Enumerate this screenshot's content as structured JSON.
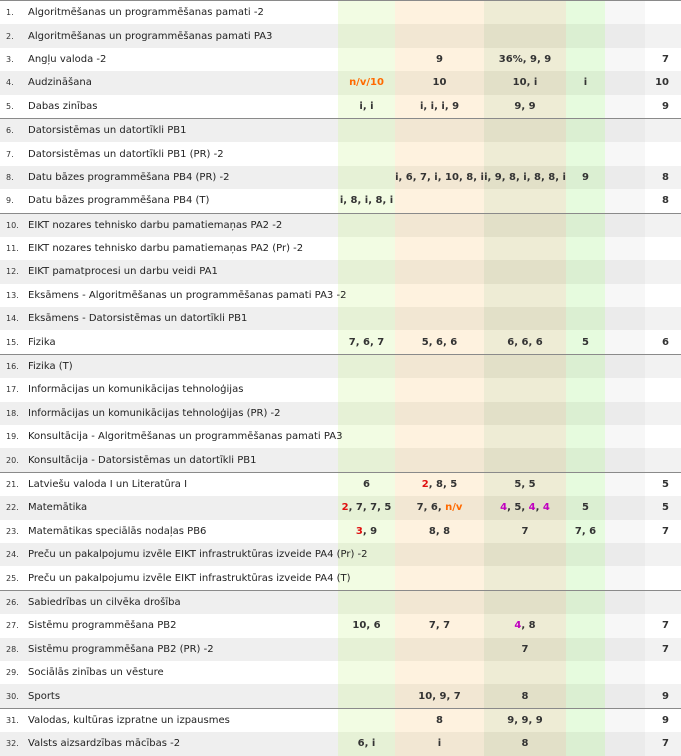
{
  "rows": [
    {
      "num": "1.",
      "subject": "Algoritmēšanas un programmēšanas pamati -2",
      "cols": [
        [],
        [],
        [],
        [],
        [],
        []
      ]
    },
    {
      "num": "2.",
      "subject": "Algoritmēšanas un programmēšanas pamati PA3",
      "cols": [
        [],
        [],
        [],
        [],
        [],
        []
      ]
    },
    {
      "num": "3.",
      "subject": "Angļu valoda -2",
      "cols": [
        [],
        [
          {
            "t": "9"
          }
        ],
        [
          {
            "t": "36%"
          },
          {
            "t": "9"
          },
          {
            "t": "9"
          }
        ],
        [],
        [],
        [
          {
            "t": "7"
          }
        ]
      ]
    },
    {
      "num": "4.",
      "subject": "Audzināšana",
      "cols": [
        [
          {
            "t": "n/v/10",
            "c": "orange"
          }
        ],
        [
          {
            "t": "10"
          }
        ],
        [
          {
            "t": "10"
          },
          {
            "t": "i"
          }
        ],
        [
          {
            "t": "i"
          }
        ],
        [],
        [
          {
            "t": "10"
          }
        ]
      ]
    },
    {
      "num": "5.",
      "subject": "Dabas zinības",
      "cols": [
        [
          {
            "t": "i"
          },
          {
            "t": "i"
          }
        ],
        [
          {
            "t": "i"
          },
          {
            "t": "i"
          },
          {
            "t": "i"
          },
          {
            "t": "9"
          }
        ],
        [
          {
            "t": "9"
          },
          {
            "t": "9"
          }
        ],
        [],
        [],
        [
          {
            "t": "9"
          }
        ]
      ]
    },
    {
      "num": "6.",
      "subject": "Datorsistēmas un datortīkli PB1",
      "cols": [
        [],
        [],
        [],
        [],
        [],
        []
      ]
    },
    {
      "num": "7.",
      "subject": "Datorsistēmas un datortīkli PB1 (PR) -2",
      "cols": [
        [],
        [],
        [],
        [],
        [],
        []
      ]
    },
    {
      "num": "8.",
      "subject": "Datu bāzes programmēšana PB4 (PR) -2",
      "cols": [
        [],
        [
          {
            "t": "i"
          },
          {
            "t": "6"
          },
          {
            "t": "7"
          },
          {
            "t": "i"
          },
          {
            "t": "10"
          },
          {
            "t": "8"
          },
          {
            "t": "i"
          }
        ],
        [
          {
            "t": "i"
          },
          {
            "t": "9"
          },
          {
            "t": "8"
          },
          {
            "t": "i"
          },
          {
            "t": "8"
          },
          {
            "t": "8"
          },
          {
            "t": "i"
          }
        ],
        [
          {
            "t": "9"
          }
        ],
        [],
        [
          {
            "t": "8"
          }
        ]
      ]
    },
    {
      "num": "9.",
      "subject": "Datu bāzes programmēšana PB4 (T)",
      "cols": [
        [
          {
            "t": "i"
          },
          {
            "t": "8"
          },
          {
            "t": "i"
          },
          {
            "t": "8"
          },
          {
            "t": "i"
          }
        ],
        [],
        [],
        [],
        [],
        [
          {
            "t": "8"
          }
        ]
      ]
    },
    {
      "num": "10.",
      "subject": "EIKT nozares tehnisko darbu pamatiemaņas PA2 -2",
      "cols": [
        [],
        [],
        [],
        [],
        [],
        []
      ]
    },
    {
      "num": "11.",
      "subject": "EIKT nozares tehnisko darbu pamatiemaņas PA2 (Pr) -2",
      "cols": [
        [],
        [],
        [],
        [],
        [],
        []
      ]
    },
    {
      "num": "12.",
      "subject": "EIKT pamatprocesi un darbu veidi PA1",
      "cols": [
        [],
        [],
        [],
        [],
        [],
        []
      ]
    },
    {
      "num": "13.",
      "subject": "Eksāmens - Algoritmēšanas un programmēšanas pamati PA3 -2",
      "cols": [
        [],
        [],
        [],
        [],
        [],
        []
      ]
    },
    {
      "num": "14.",
      "subject": "Eksāmens - Datorsistēmas un datortīkli PB1",
      "cols": [
        [],
        [],
        [],
        [],
        [],
        []
      ]
    },
    {
      "num": "15.",
      "subject": "Fizika",
      "cols": [
        [
          {
            "t": "7"
          },
          {
            "t": "6"
          },
          {
            "t": "7"
          }
        ],
        [
          {
            "t": "5"
          },
          {
            "t": "6"
          },
          {
            "t": "6"
          }
        ],
        [
          {
            "t": "6"
          },
          {
            "t": "6"
          },
          {
            "t": "6"
          }
        ],
        [
          {
            "t": "5"
          }
        ],
        [],
        [
          {
            "t": "6"
          }
        ]
      ]
    },
    {
      "num": "16.",
      "subject": "Fizika (T)",
      "cols": [
        [],
        [],
        [],
        [],
        [],
        []
      ]
    },
    {
      "num": "17.",
      "subject": "Informācijas un komunikācijas tehnoloģijas",
      "cols": [
        [],
        [],
        [],
        [],
        [],
        []
      ]
    },
    {
      "num": "18.",
      "subject": "Informācijas un komunikācijas tehnoloģijas (PR) -2",
      "cols": [
        [],
        [],
        [],
        [],
        [],
        []
      ]
    },
    {
      "num": "19.",
      "subject": "Konsultācija - Algoritmēšanas un programmēšanas pamati PA3",
      "cols": [
        [],
        [],
        [],
        [],
        [],
        []
      ]
    },
    {
      "num": "20.",
      "subject": "Konsultācija - Datorsistēmas un datortīkli PB1",
      "cols": [
        [],
        [],
        [],
        [],
        [],
        []
      ]
    },
    {
      "num": "21.",
      "subject": "Latviešu valoda I un Literatūra I",
      "cols": [
        [
          {
            "t": "6"
          }
        ],
        [
          {
            "t": "2",
            "c": "red"
          },
          {
            "t": "8"
          },
          {
            "t": "5"
          }
        ],
        [
          {
            "t": "5"
          },
          {
            "t": "5"
          }
        ],
        [],
        [],
        [
          {
            "t": "5"
          }
        ]
      ]
    },
    {
      "num": "22.",
      "subject": "Matemātika",
      "cols": [
        [
          {
            "t": "2",
            "c": "red"
          },
          {
            "t": "7"
          },
          {
            "t": "7"
          },
          {
            "t": "5"
          }
        ],
        [
          {
            "t": "7"
          },
          {
            "t": "6"
          },
          {
            "t": "n/v",
            "c": "orange"
          }
        ],
        [
          {
            "t": "4",
            "c": "magenta"
          },
          {
            "t": "5"
          },
          {
            "t": "4",
            "c": "magenta"
          },
          {
            "t": "4",
            "c": "magenta"
          }
        ],
        [
          {
            "t": "5"
          }
        ],
        [],
        [
          {
            "t": "5"
          }
        ]
      ]
    },
    {
      "num": "23.",
      "subject": "Matemātikas speciālās nodaļas PB6",
      "cols": [
        [
          {
            "t": "3",
            "c": "red"
          },
          {
            "t": "9"
          }
        ],
        [
          {
            "t": "8"
          },
          {
            "t": "8"
          }
        ],
        [
          {
            "t": "7"
          }
        ],
        [
          {
            "t": "7"
          },
          {
            "t": "6"
          }
        ],
        [],
        [
          {
            "t": "7"
          }
        ]
      ]
    },
    {
      "num": "24.",
      "subject": "Preču un pakalpojumu izvēle EIKT infrastruktūras izveide PA4 (Pr) -2",
      "cols": [
        [],
        [],
        [],
        [],
        [],
        []
      ]
    },
    {
      "num": "25.",
      "subject": "Preču un pakalpojumu izvēle EIKT infrastruktūras izveide PA4 (T)",
      "cols": [
        [],
        [],
        [],
        [],
        [],
        []
      ]
    },
    {
      "num": "26.",
      "subject": "Sabiedrības un cilvēka drošība",
      "cols": [
        [],
        [],
        [],
        [],
        [],
        []
      ]
    },
    {
      "num": "27.",
      "subject": "Sistēmu programmēšana PB2",
      "cols": [
        [
          {
            "t": "10"
          },
          {
            "t": "6"
          }
        ],
        [
          {
            "t": "7"
          },
          {
            "t": "7"
          }
        ],
        [
          {
            "t": "4",
            "c": "magenta"
          },
          {
            "t": "8"
          }
        ],
        [],
        [],
        [
          {
            "t": "7"
          }
        ]
      ]
    },
    {
      "num": "28.",
      "subject": "Sistēmu programmēšana PB2 (PR) -2",
      "cols": [
        [],
        [],
        [
          {
            "t": "7"
          }
        ],
        [],
        [],
        [
          {
            "t": "7"
          }
        ]
      ]
    },
    {
      "num": "29.",
      "subject": "Sociālās zinības un vēsture",
      "cols": [
        [],
        [],
        [],
        [],
        [],
        []
      ]
    },
    {
      "num": "30.",
      "subject": "Sports",
      "cols": [
        [],
        [
          {
            "t": "10"
          },
          {
            "t": "9"
          },
          {
            "t": "7"
          }
        ],
        [
          {
            "t": "8"
          }
        ],
        [],
        [],
        [
          {
            "t": "9"
          }
        ]
      ]
    },
    {
      "num": "31.",
      "subject": "Valodas, kultūras izpratne un izpausmes",
      "cols": [
        [],
        [
          {
            "t": "8"
          }
        ],
        [
          {
            "t": "9"
          },
          {
            "t": "9"
          },
          {
            "t": "9"
          }
        ],
        [],
        [],
        [
          {
            "t": "9"
          }
        ]
      ]
    },
    {
      "num": "32.",
      "subject": "Valsts aizsardzības mācības -2",
      "cols": [
        [
          {
            "t": "6"
          },
          {
            "t": "i"
          }
        ],
        [
          {
            "t": "i"
          }
        ],
        [
          {
            "t": "8"
          }
        ],
        [],
        [],
        [
          {
            "t": "7"
          }
        ]
      ]
    }
  ],
  "group_start_rows": [
    0,
    5,
    9,
    15,
    20,
    25,
    30
  ]
}
